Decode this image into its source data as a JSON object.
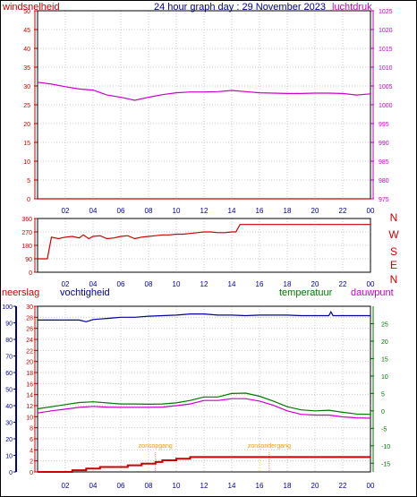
{
  "header": {
    "left_label": "windsnelheid",
    "title": "24 hour graph day : 29 November 2023",
    "right_label": "luchtdruk"
  },
  "colors": {
    "frame": "#000000",
    "grid": "#c8c8c8",
    "left_axis": "#cc0000",
    "pressure": "#cc00cc",
    "title": "#000099",
    "wind_dir": "#cc0000",
    "humidity": "#000099",
    "temperature": "#007700",
    "dewpoint": "#cc00cc",
    "rain": "#cc0000",
    "sun": "#ff9900"
  },
  "x_ticks": [
    "02",
    "04",
    "06",
    "08",
    "10",
    "12",
    "14",
    "16",
    "18",
    "20",
    "22",
    "00"
  ],
  "panel_mid": {
    "y_ticks": [
      "360",
      "270",
      "180",
      "90",
      "0"
    ],
    "compass": [
      "N",
      "W",
      "S",
      "E",
      "N"
    ]
  },
  "panel_bottom": {
    "label_rain": "neerslag",
    "label_humidity": "vochtigheid",
    "label_temperature": "temperatuur",
    "label_dewpoint": "dauwpunt",
    "rain_ticks": [
      "100",
      "90",
      "80",
      "70",
      "60",
      "50",
      "40",
      "30",
      "20",
      "10",
      "0"
    ],
    "humidity_ticks": [
      "30",
      "28",
      "26",
      "24",
      "22",
      "20",
      "18",
      "16",
      "14",
      "12",
      "10",
      "8",
      "6",
      "4",
      "2",
      "0"
    ],
    "temp_ticks": [
      "25",
      "20",
      "15",
      "10",
      "5",
      "0",
      "-5",
      "-10",
      "-15"
    ],
    "sunrise_label": "zonsopgang",
    "sunset_label": "zonsondergang"
  },
  "chart_data": [
    {
      "type": "line",
      "x_unit": "hour",
      "xlim": [
        0,
        24
      ],
      "y_left": {
        "label": "windsnelheid",
        "ticks": [
          0,
          5,
          10,
          15,
          20,
          25,
          30,
          35,
          40,
          45,
          50
        ],
        "ylim": [
          0,
          50
        ]
      },
      "y_right": {
        "label": "luchtdruk",
        "ticks": [
          975,
          980,
          985,
          990,
          995,
          1000,
          1005,
          1010,
          1015,
          1020,
          1025
        ],
        "ylim": [
          975,
          1025
        ]
      },
      "series": [
        {
          "name": "luchtdruk",
          "axis": "right",
          "x": [
            0,
            1,
            2,
            3,
            4,
            5,
            6,
            7,
            8,
            9,
            10,
            11,
            12,
            13,
            14,
            15,
            16,
            17,
            18,
            19,
            20,
            21,
            22,
            23,
            24
          ],
          "values": [
            1006,
            1005.5,
            1004.8,
            1004.2,
            1003.9,
            1002.6,
            1002,
            1001.2,
            1002,
            1002.7,
            1003.2,
            1003.4,
            1003.4,
            1003.5,
            1003.8,
            1003.5,
            1003.2,
            1003.1,
            1003,
            1003,
            1003.1,
            1003.1,
            1003,
            1002.6,
            1002.9
          ]
        },
        {
          "name": "windsnelheid",
          "axis": "left",
          "x": [
            0,
            24
          ],
          "values": [
            0,
            0
          ]
        }
      ]
    },
    {
      "type": "line",
      "x_unit": "hour",
      "xlim": [
        0,
        24
      ],
      "y": {
        "ticks": [
          0,
          90,
          180,
          270,
          360
        ],
        "ylim": [
          0,
          360
        ]
      },
      "series": [
        {
          "name": "windrichting",
          "x": [
            0,
            0.4,
            0.7,
            1,
            1.5,
            2,
            2.5,
            3,
            3.3,
            3.7,
            4,
            4.5,
            5,
            5.5,
            6,
            6.5,
            7,
            7.5,
            8,
            8.5,
            9,
            9.5,
            10,
            10.5,
            11,
            11.5,
            12,
            12.5,
            13,
            13.5,
            14,
            14.3,
            14.6,
            15,
            16,
            17,
            18,
            19,
            20,
            21,
            22,
            23,
            24
          ],
          "values": [
            90,
            90,
            90,
            235,
            225,
            235,
            240,
            230,
            250,
            225,
            240,
            245,
            225,
            230,
            240,
            245,
            225,
            235,
            240,
            245,
            250,
            250,
            255,
            255,
            260,
            265,
            270,
            270,
            265,
            265,
            270,
            270,
            320,
            320,
            320,
            320,
            320,
            320,
            320,
            320,
            320,
            320,
            320
          ]
        }
      ]
    },
    {
      "type": "line",
      "x_unit": "hour",
      "xlim": [
        0,
        24
      ],
      "y_rain": {
        "label": "neerslag",
        "ticks": [
          0,
          10,
          20,
          30,
          40,
          50,
          60,
          70,
          80,
          90,
          100
        ],
        "ylim": [
          0,
          100
        ]
      },
      "y_humidity": {
        "label": "vochtigheid",
        "ticks": [
          0,
          2,
          4,
          6,
          8,
          10,
          12,
          14,
          16,
          18,
          20,
          22,
          24,
          26,
          28,
          30
        ],
        "ylim": [
          0,
          30
        ]
      },
      "y_temp": {
        "label": "temperatuur",
        "ticks": [
          -15,
          -10,
          -5,
          0,
          5,
          10,
          15,
          20,
          25
        ],
        "ylim": [
          -17.5,
          30
        ]
      },
      "series": [
        {
          "name": "vochtigheid",
          "axis": "humidity",
          "x": [
            0,
            1,
            2,
            3,
            3.5,
            4,
            4.5,
            5,
            6,
            7,
            8,
            9,
            10,
            11,
            12,
            13,
            14,
            15,
            16,
            17,
            18,
            19,
            20,
            21,
            21.15,
            21.3,
            22,
            23,
            24
          ],
          "values": [
            27.5,
            27.5,
            27.5,
            27.5,
            27.2,
            27.6,
            27.7,
            27.8,
            28,
            28,
            28.2,
            28.3,
            28.4,
            28.6,
            28.6,
            28.4,
            28.4,
            28.3,
            28.4,
            28.4,
            28.4,
            28.3,
            28.3,
            28.3,
            29,
            28.3,
            28.3,
            28.3,
            28.3
          ]
        },
        {
          "name": "temperatuur",
          "axis": "temp",
          "x": [
            0,
            1,
            2,
            3,
            4,
            5,
            6,
            7,
            8,
            9,
            10,
            11,
            12,
            13,
            14,
            15,
            16,
            17,
            18,
            19,
            20,
            21,
            22,
            23,
            24
          ],
          "values": [
            0.6,
            1.2,
            1.8,
            2.4,
            2.6,
            2.3,
            2.0,
            2.0,
            1.9,
            2.0,
            2.3,
            3.0,
            4.0,
            4.0,
            5.0,
            5.1,
            4.2,
            2.8,
            1.2,
            0.3,
            0.0,
            0.2,
            -0.4,
            -0.9,
            -1.0
          ]
        },
        {
          "name": "dauwpunt",
          "axis": "temp",
          "x": [
            0,
            1,
            2,
            3,
            4,
            5,
            6,
            7,
            8,
            9,
            10,
            11,
            12,
            13,
            14,
            15,
            16,
            17,
            18,
            19,
            20,
            21,
            22,
            23,
            24
          ],
          "values": [
            -0.6,
            0.0,
            0.5,
            1.0,
            1.3,
            1.1,
            1.0,
            1.0,
            1.0,
            1.1,
            1.5,
            2.0,
            3.0,
            3.0,
            3.5,
            3.5,
            2.8,
            1.6,
            0.0,
            -1.0,
            -1.2,
            -1.2,
            -1.7,
            -2.0,
            -2.1
          ]
        },
        {
          "name": "neerslag",
          "axis": "rain",
          "x": [
            0,
            2.5,
            2.5,
            3.5,
            3.5,
            4.5,
            4.5,
            6.5,
            6.5,
            7.5,
            7.5,
            8.5,
            8.5,
            9,
            9,
            10,
            10,
            11,
            11,
            24
          ],
          "values": [
            0,
            0,
            1,
            1,
            2,
            2,
            3,
            3,
            4,
            4,
            5,
            5,
            6,
            6,
            7,
            7,
            8,
            8,
            9,
            9
          ]
        }
      ],
      "markers": [
        {
          "label": "zonsopgang",
          "x": 8.5
        },
        {
          "label": "zonsondergang",
          "x": 16.7
        }
      ]
    }
  ]
}
